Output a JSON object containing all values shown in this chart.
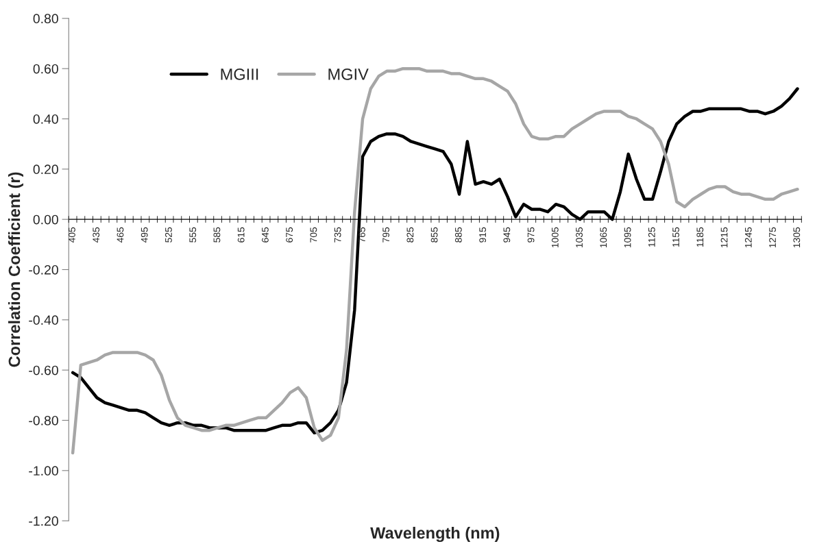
{
  "chart_data": {
    "type": "line",
    "xlabel": "Wavelength (nm)",
    "ylabel": "Correlation Coefficient (r)",
    "categories": [
      "405",
      null,
      null,
      "435",
      null,
      null,
      "465",
      null,
      null,
      "495",
      null,
      null,
      "525",
      null,
      null,
      "555",
      null,
      null,
      "585",
      null,
      null,
      "615",
      null,
      null,
      "645",
      null,
      null,
      "675",
      null,
      null,
      "705",
      null,
      null,
      "735",
      null,
      null,
      "765",
      null,
      null,
      "795",
      null,
      null,
      "825",
      null,
      null,
      "855",
      null,
      null,
      "885",
      null,
      null,
      "915",
      null,
      null,
      "945",
      null,
      null,
      "975",
      null,
      null,
      "1005",
      null,
      null,
      "1035",
      null,
      null,
      "1065",
      null,
      null,
      "1095",
      null,
      null,
      "1125",
      null,
      null,
      "1155",
      null,
      null,
      "1185",
      null,
      null,
      "1215",
      null,
      null,
      "1245",
      null,
      null,
      "1275",
      null,
      null,
      "1305"
    ],
    "series": [
      {
        "name": "MGIII",
        "color": "#000000",
        "values": [
          -0.61,
          -0.63,
          -0.67,
          -0.71,
          -0.73,
          -0.74,
          -0.75,
          -0.76,
          -0.76,
          -0.77,
          -0.79,
          -0.81,
          -0.82,
          -0.81,
          -0.81,
          -0.82,
          -0.82,
          -0.83,
          -0.83,
          -0.83,
          -0.84,
          -0.84,
          -0.84,
          -0.84,
          -0.84,
          -0.83,
          -0.82,
          -0.82,
          -0.81,
          -0.81,
          -0.85,
          -0.84,
          -0.81,
          -0.76,
          -0.65,
          -0.36,
          0.25,
          0.31,
          0.33,
          0.34,
          0.34,
          0.33,
          0.31,
          0.3,
          0.29,
          0.28,
          0.27,
          0.22,
          0.1,
          0.31,
          0.14,
          0.15,
          0.14,
          0.16,
          0.09,
          0.01,
          0.06,
          0.04,
          0.04,
          0.03,
          0.06,
          0.05,
          0.02,
          0.0,
          0.03,
          0.03,
          0.03,
          0.0,
          0.11,
          0.26,
          0.16,
          0.08,
          0.08,
          0.19,
          0.31,
          0.38,
          0.41,
          0.43,
          0.43,
          0.44,
          0.44,
          0.44,
          0.44,
          0.44,
          0.43,
          0.43,
          0.42,
          0.43,
          0.45,
          0.48,
          0.52
        ]
      },
      {
        "name": "MGIV",
        "color": "#a6a6a6",
        "values": [
          -0.93,
          -0.58,
          -0.57,
          -0.56,
          -0.54,
          -0.53,
          -0.53,
          -0.53,
          -0.53,
          -0.54,
          -0.56,
          -0.62,
          -0.72,
          -0.79,
          -0.82,
          -0.83,
          -0.84,
          -0.84,
          -0.83,
          -0.82,
          -0.82,
          -0.81,
          -0.8,
          -0.79,
          -0.79,
          -0.76,
          -0.73,
          -0.69,
          -0.67,
          -0.71,
          -0.83,
          -0.88,
          -0.86,
          -0.79,
          -0.52,
          0.03,
          0.4,
          0.52,
          0.57,
          0.59,
          0.59,
          0.6,
          0.6,
          0.6,
          0.59,
          0.59,
          0.59,
          0.58,
          0.58,
          0.57,
          0.56,
          0.56,
          0.55,
          0.53,
          0.51,
          0.46,
          0.38,
          0.33,
          0.32,
          0.32,
          0.33,
          0.33,
          0.36,
          0.38,
          0.4,
          0.42,
          0.43,
          0.43,
          0.43,
          0.41,
          0.4,
          0.38,
          0.36,
          0.31,
          0.22,
          0.07,
          0.05,
          0.08,
          0.1,
          0.12,
          0.13,
          0.13,
          0.11,
          0.1,
          0.1,
          0.09,
          0.08,
          0.08,
          0.1,
          0.11,
          0.12
        ]
      }
    ],
    "ylim": [
      -1.2,
      0.8
    ],
    "yticks": [
      {
        "value": -1.2,
        "label": "-1.20"
      },
      {
        "value": -1.0,
        "label": "-1.00"
      },
      {
        "value": -0.8,
        "label": "-0.80"
      },
      {
        "value": -0.6,
        "label": "-0.60"
      },
      {
        "value": -0.4,
        "label": "-0.40"
      },
      {
        "value": -0.2,
        "label": "-0.20"
      },
      {
        "value": 0,
        "label": "0.00"
      },
      {
        "value": 0.2,
        "label": "0.20"
      },
      {
        "value": 0.4,
        "label": "0.40"
      },
      {
        "value": 0.6,
        "label": "0.60"
      },
      {
        "value": 0.8,
        "label": "0.80"
      }
    ],
    "legend": "top left",
    "grid": false,
    "marker": "none",
    "line_style": "solid"
  }
}
